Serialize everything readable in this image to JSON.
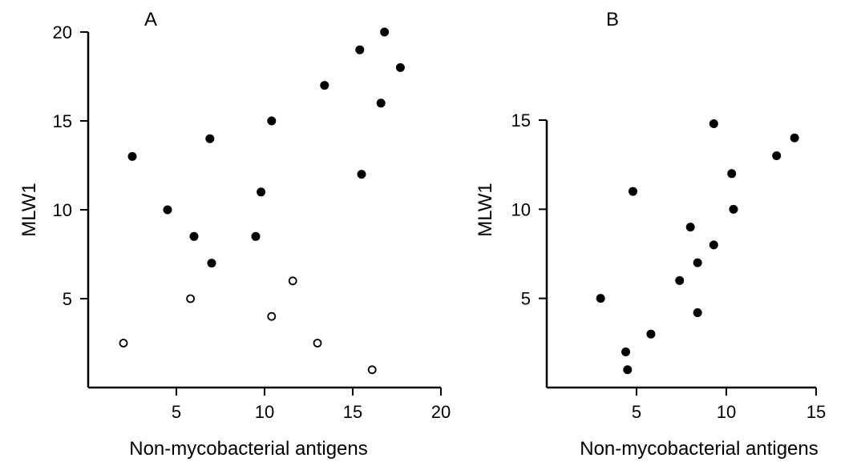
{
  "chart_data": [
    {
      "type": "scatter",
      "panel_label": "A",
      "xlabel": "Non-mycobacterial antigens",
      "ylabel": "MLW1",
      "xlim": [
        0,
        20
      ],
      "ylim": [
        0,
        20
      ],
      "xticks": [
        5,
        10,
        15,
        20
      ],
      "yticks": [
        5,
        10,
        15,
        20
      ],
      "grid": false,
      "series": [
        {
          "marker": "filled-circle",
          "color": "#000000",
          "points": [
            {
              "x": 2.5,
              "y": 13
            },
            {
              "x": 4.5,
              "y": 10
            },
            {
              "x": 6,
              "y": 8.5
            },
            {
              "x": 6.9,
              "y": 14
            },
            {
              "x": 7,
              "y": 7
            },
            {
              "x": 9.5,
              "y": 8.5
            },
            {
              "x": 9.8,
              "y": 11
            },
            {
              "x": 10.4,
              "y": 15
            },
            {
              "x": 13.4,
              "y": 17
            },
            {
              "x": 15.4,
              "y": 19
            },
            {
              "x": 15.5,
              "y": 12
            },
            {
              "x": 16.6,
              "y": 16
            },
            {
              "x": 16.8,
              "y": 20
            },
            {
              "x": 17.7,
              "y": 18
            }
          ]
        },
        {
          "marker": "open-circle",
          "color": "#000000",
          "points": [
            {
              "x": 2,
              "y": 2.5
            },
            {
              "x": 5.8,
              "y": 5
            },
            {
              "x": 10.4,
              "y": 4
            },
            {
              "x": 11.6,
              "y": 6
            },
            {
              "x": 13,
              "y": 2.5
            },
            {
              "x": 16.1,
              "y": 1
            }
          ]
        }
      ]
    },
    {
      "type": "scatter",
      "panel_label": "B",
      "xlabel": "Non-mycobacterial antigens",
      "ylabel": "MLW1",
      "xlim": [
        0,
        15
      ],
      "ylim": [
        0,
        15
      ],
      "xticks": [
        5,
        10,
        15
      ],
      "yticks": [
        5,
        10,
        15
      ],
      "grid": false,
      "series": [
        {
          "marker": "filled-circle",
          "color": "#000000",
          "points": [
            {
              "x": 3,
              "y": 5
            },
            {
              "x": 4.4,
              "y": 2
            },
            {
              "x": 4.5,
              "y": 1
            },
            {
              "x": 4.8,
              "y": 11
            },
            {
              "x": 5.8,
              "y": 3
            },
            {
              "x": 7.4,
              "y": 6
            },
            {
              "x": 8,
              "y": 9
            },
            {
              "x": 8.4,
              "y": 7
            },
            {
              "x": 8.4,
              "y": 4.2
            },
            {
              "x": 9.3,
              "y": 8
            },
            {
              "x": 9.3,
              "y": 14.8
            },
            {
              "x": 10.3,
              "y": 12
            },
            {
              "x": 10.4,
              "y": 10
            },
            {
              "x": 12.8,
              "y": 13
            },
            {
              "x": 13.8,
              "y": 14
            }
          ]
        }
      ]
    }
  ]
}
